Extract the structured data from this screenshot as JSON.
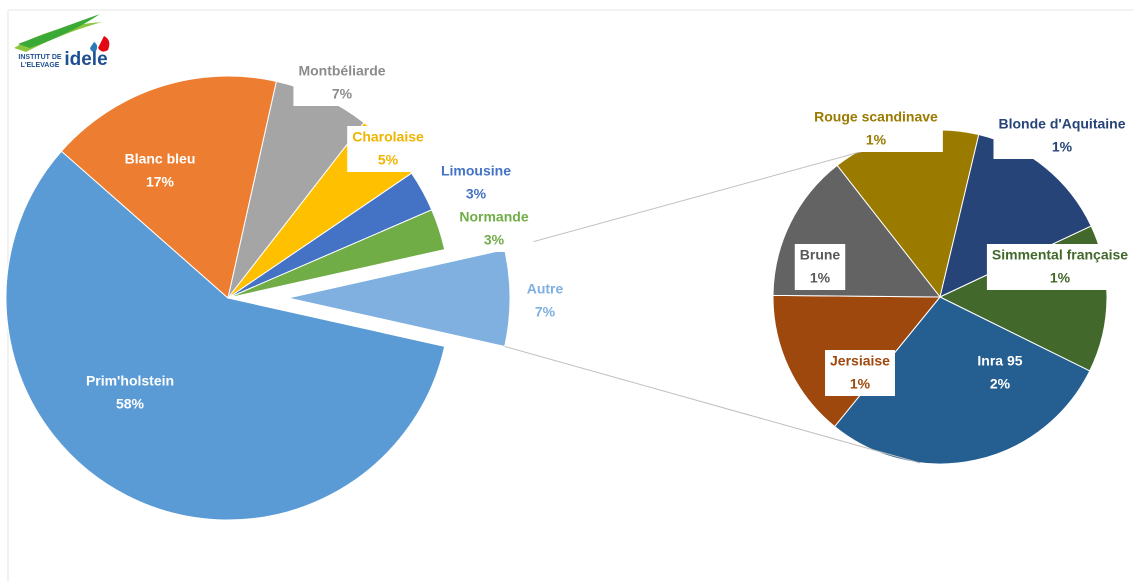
{
  "logo": {
    "line1": "INSTITUT DE",
    "line2": "L'ELEVAGE",
    "brand": "idele"
  },
  "chart_data": [
    {
      "type": "pie",
      "categories": [
        "Prim'holstein",
        "Blanc bleu",
        "Montbéliarde",
        "Charolaise",
        "Limousine",
        "Normande",
        "Autre"
      ],
      "values": [
        58,
        17,
        7,
        5,
        3,
        3,
        7
      ],
      "value_labels": [
        "58%",
        "17%",
        "7%",
        "5%",
        "3%",
        "3%",
        "7%"
      ],
      "colors": [
        "#5b9bd5",
        "#ed7d31",
        "#a5a5a5",
        "#ffc000",
        "#4472c4",
        "#70ad47",
        "#7fb0df"
      ]
    },
    {
      "type": "pie",
      "categories": [
        "Rouge scandinave",
        "Blonde d'Aquitaine",
        "Simmental française",
        "Inra 95",
        "Jersiaise",
        "Brune"
      ],
      "values": [
        1,
        1,
        1,
        2,
        1,
        1
      ],
      "value_labels": [
        "1%",
        "1%",
        "1%",
        "2%",
        "1%",
        "1%"
      ],
      "colors": [
        "#9b7a00",
        "#264478",
        "#43682b",
        "#255e91",
        "#9e480e",
        "#636363"
      ]
    }
  ]
}
